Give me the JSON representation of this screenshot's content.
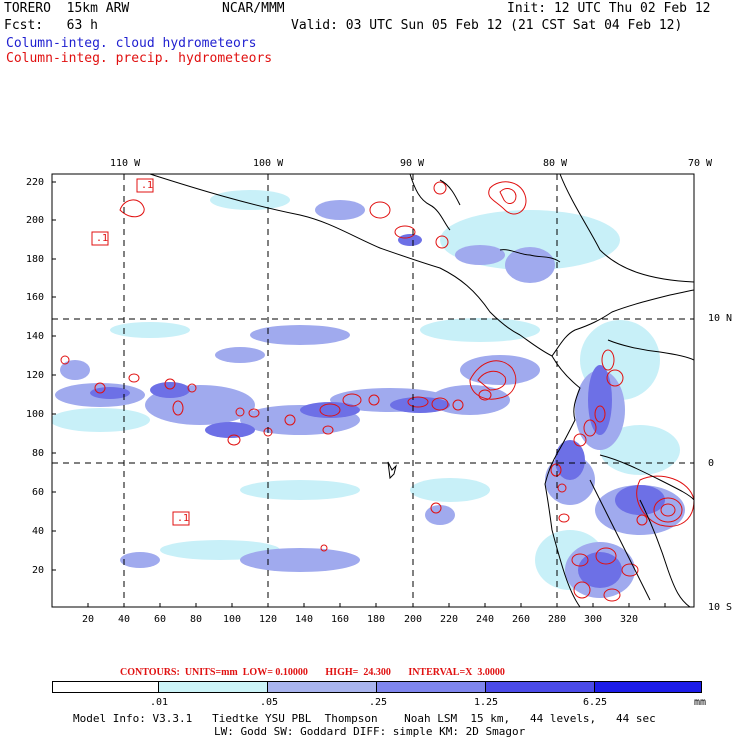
{
  "header": {
    "model": "TORERO  15km ARW",
    "org": "NCAR/MMM",
    "init": "Init: 12 UTC Thu 02 Feb 12",
    "fcst": "Fcst:   63 h",
    "valid": "Valid: 03 UTC Sun 05 Feb 12 (21 CST Sat 04 Feb 12)",
    "field1": "Column-integ. cloud hydrometeors",
    "field2": "Column-integ. precip. hydrometeors"
  },
  "axes": {
    "lon_labels": [
      "110 W",
      "100 W",
      "90 W",
      "80 W",
      "70 W"
    ],
    "lat_labels": [
      "10 N",
      "0",
      "10 S"
    ],
    "y_ticks": [
      "220",
      "200",
      "180",
      "160",
      "140",
      "120",
      "100",
      "80",
      "60",
      "40",
      "20"
    ],
    "x_ticks": [
      "20",
      "40",
      "60",
      "80",
      "100",
      "120",
      "140",
      "160",
      "180",
      "200",
      "220",
      "240",
      "260",
      "280",
      "300",
      "320"
    ]
  },
  "contour_labels": [
    ".1",
    ".1",
    ".1"
  ],
  "contours_info": {
    "text": "CONTOURS:  UNITS=mm  LOW= 0.10000       HIGH=  24.300       INTERVAL=X  3.0000"
  },
  "colorbar": {
    "labels": [
      ".01",
      ".05",
      ".25",
      "1.25",
      "6.25",
      "mm"
    ],
    "colors": [
      "#ffffff",
      "#ccf4f8",
      "#a9b4ee",
      "#7f86ee",
      "#4b4be8",
      "#1c1ce8"
    ]
  },
  "model_info": {
    "line1": "Model Info: V3.3.1   Tiedtke YSU PBL  Thompson    Noah LSM  15 km,   44 levels,   44 sec",
    "line2": "LW: Godd SW: Goddard DIFF: simple KM: 2D Smagor"
  },
  "colors": {
    "cloud_light": "#c8f0f8",
    "cloud_mid": "#a0aaee",
    "cloud_dark": "#6d70e6",
    "precip_contour": "#e01010",
    "title_blue": "#1f1fd0"
  }
}
